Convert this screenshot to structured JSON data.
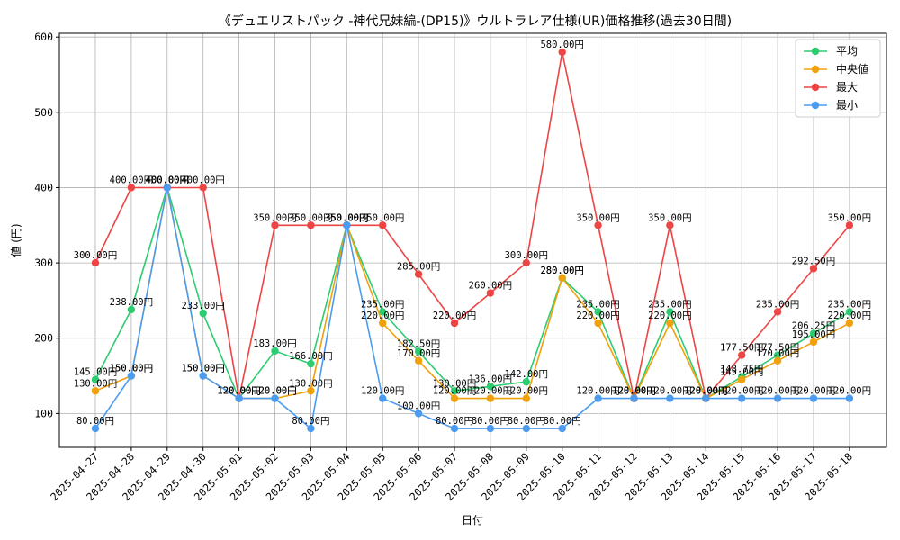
{
  "chart_data": {
    "type": "line",
    "title": "《デュエリストパック -神代兄妹編-(DP15)》ウルトラレア仕様(UR)価格推移(過去30日間)",
    "xlabel": "日付",
    "ylabel": "値 (円)",
    "ylim": [
      55,
      605
    ],
    "yticks": [
      100,
      200,
      300,
      400,
      500,
      600
    ],
    "grid": true,
    "legend_position": "top-right",
    "value_suffix": "円",
    "categories": [
      "2025-04-27",
      "2025-04-28",
      "2025-04-29",
      "2025-04-30",
      "2025-05-01",
      "2025-05-02",
      "2025-05-03",
      "2025-05-04",
      "2025-05-05",
      "2025-05-06",
      "2025-05-07",
      "2025-05-08",
      "2025-05-09",
      "2025-05-10",
      "2025-05-11",
      "2025-05-12",
      "2025-05-13",
      "2025-05-14",
      "2025-05-15",
      "2025-05-16",
      "2025-05-17",
      "2025-05-18"
    ],
    "series": [
      {
        "name": "平均",
        "color": "#2ecc71",
        "values": [
          145,
          238,
          400,
          233,
          120,
          183,
          166,
          350,
          235,
          182.5,
          130,
          136,
          142,
          280,
          235,
          120,
          235,
          120,
          148.75,
          177.5,
          206.25,
          235
        ]
      },
      {
        "name": "中央値",
        "color": "#f1a10b",
        "values": [
          130,
          150,
          400,
          150,
          120,
          120,
          130,
          350,
          220,
          170,
          120,
          120,
          120,
          280,
          220,
          120,
          220,
          120,
          145,
          170,
          195,
          220
        ]
      },
      {
        "name": "最大",
        "color": "#ef4444",
        "values": [
          300,
          400,
          400,
          400,
          120,
          350,
          350,
          350,
          350,
          285,
          220,
          260,
          300,
          580,
          350,
          120,
          350,
          120,
          177.5,
          235,
          292.5,
          350
        ]
      },
      {
        "name": "最小",
        "color": "#4b9cf0",
        "values": [
          80,
          150,
          400,
          150,
          120,
          120,
          80,
          350,
          120,
          100,
          80,
          80,
          80,
          80,
          120,
          120,
          120,
          120,
          120,
          120,
          120,
          120
        ]
      }
    ]
  }
}
